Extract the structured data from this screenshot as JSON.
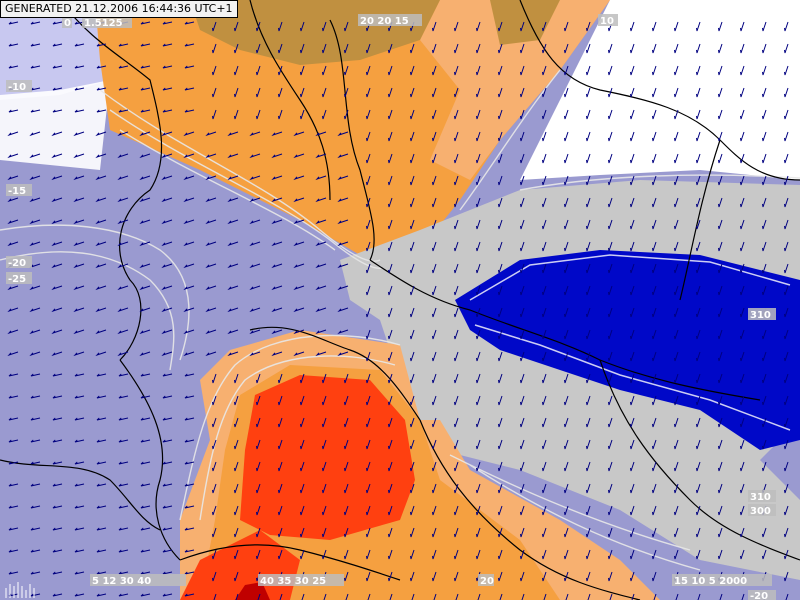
{
  "header": {
    "generated_text": "GENERATED 21.12.2006 16:44:36 UTC+1"
  },
  "map": {
    "colors": {
      "cold_light": "#c8c8f0",
      "cold_mid": "#9a9ad0",
      "neutral_grey": "#c8c8c8",
      "deep_blue": "#0008c8",
      "warm_orange": "#f5a040",
      "warm_light": "#f7b070",
      "warm_red": "#ff4010",
      "dark_red": "#c00000",
      "brown": "#c09040",
      "isoline": "#e8e8e8",
      "arrow": "#000080",
      "border": "#000000"
    },
    "contour_labels": [
      {
        "id": "top-left-1",
        "text": "0"
      },
      {
        "id": "top-left-2",
        "text": "1.5125"
      },
      {
        "id": "top-mid",
        "text": "20 20 15"
      },
      {
        "id": "top-right",
        "text": "10"
      },
      {
        "id": "left-1",
        "text": "-10"
      },
      {
        "id": "left-2",
        "text": "-15"
      },
      {
        "id": "left-3",
        "text": "-20"
      },
      {
        "id": "left-4",
        "text": "-25"
      },
      {
        "id": "right-1",
        "text": "310"
      },
      {
        "id": "right-2",
        "text": "310"
      },
      {
        "id": "right-3",
        "text": "300"
      },
      {
        "id": "bottom-left",
        "text": "5 12 30 40"
      },
      {
        "id": "bottom-mid",
        "text": "40 35 30 25"
      },
      {
        "id": "bottom-mid2",
        "text": "20"
      },
      {
        "id": "bottom-right",
        "text": "15 10 5 2000"
      },
      {
        "id": "bottom-right2",
        "text": "-20"
      }
    ]
  }
}
